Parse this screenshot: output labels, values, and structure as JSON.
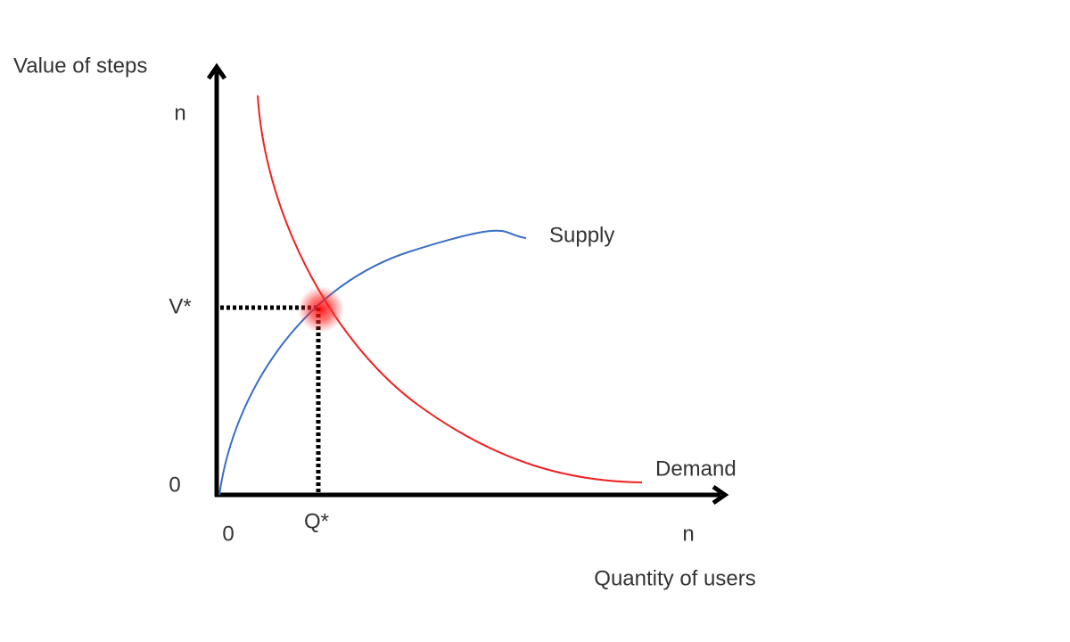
{
  "axes": {
    "y": {
      "title": "Value of steps",
      "labels": [
        "n",
        "V*",
        "0"
      ]
    },
    "x": {
      "title": "Quantity of users",
      "labels": [
        "0",
        "Q*",
        "n"
      ]
    }
  },
  "curves": [
    {
      "label": "Supply"
    },
    {
      "label": "Demand"
    }
  ]
}
